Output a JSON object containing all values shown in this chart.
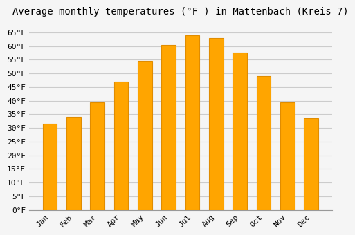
{
  "months": [
    "Jan",
    "Feb",
    "Mar",
    "Apr",
    "May",
    "Jun",
    "Jul",
    "Aug",
    "Sep",
    "Oct",
    "Nov",
    "Dec"
  ],
  "values": [
    31.5,
    34.0,
    39.5,
    47.0,
    54.5,
    60.5,
    64.0,
    63.0,
    57.5,
    49.0,
    39.5,
    33.5
  ],
  "bar_color": "#FFA500",
  "bar_edge_color": "#E08C00",
  "title": "Average monthly temperatures (°F ) in Mattenbach (Kreis 7)",
  "ylim": [
    0,
    68
  ],
  "yticks": [
    0,
    5,
    10,
    15,
    20,
    25,
    30,
    35,
    40,
    45,
    50,
    55,
    60,
    65
  ],
  "background_color": "#F5F5F5",
  "grid_color": "#CCCCCC",
  "title_fontsize": 10,
  "tick_fontsize": 8,
  "bar_width": 0.6
}
